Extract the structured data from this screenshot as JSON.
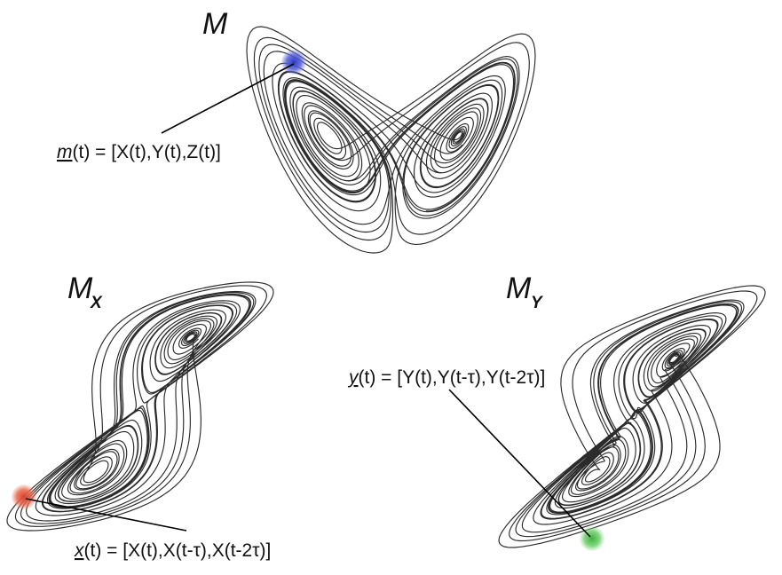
{
  "panels": {
    "M": {
      "title": "M",
      "sub": "",
      "vector_name": "m",
      "vector_rest": "(t) = [X(t),Y(t),Z(t)]",
      "marker_color": "#4a55d0"
    },
    "MX": {
      "title": "M",
      "sub": "X",
      "vector_name": "x",
      "vector_rest": "(t) = [X(t),X(t-τ),X(t-2τ)]",
      "marker_color": "#e0583c"
    },
    "MY": {
      "title": "M",
      "sub": "Y",
      "vector_name": "y",
      "vector_rest": "(t) = [Y(t),Y(t-τ),Y(t-2τ)]",
      "marker_color": "#5cc85a"
    }
  },
  "colors": {
    "trajectory": "#2b2b2b",
    "text": "#111111"
  }
}
